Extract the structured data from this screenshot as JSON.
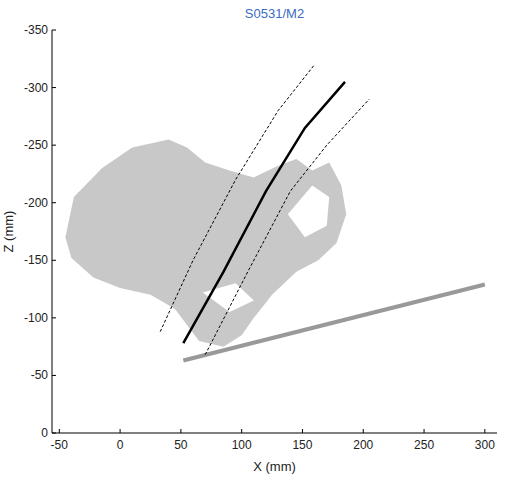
{
  "chart_data": {
    "type": "line",
    "title": "S0531/M2",
    "x_label": "X (mm)",
    "y_label": "Z (mm)",
    "xlim": [
      -56,
      310
    ],
    "ylim": [
      0,
      -350
    ],
    "xticks": [
      -50,
      0,
      50,
      100,
      150,
      200,
      250,
      300
    ],
    "yticks": [
      0,
      -50,
      -100,
      -150,
      -200,
      -250,
      -300,
      -350
    ],
    "grid": false,
    "series": [
      {
        "type": "area",
        "color": "#c8c8c8",
        "x": [
          -45,
          -38,
          -15,
          10,
          40,
          55,
          70,
          90,
          110,
          130,
          145,
          158,
          172,
          182,
          186,
          178,
          163,
          145,
          125,
          110,
          100,
          85,
          65,
          45,
          25,
          0,
          -22,
          -40,
          null,
          138,
          158,
          172,
          170,
          152,
          null,
          68,
          95,
          110,
          90
        ],
        "values": [
          -170,
          -205,
          -230,
          -248,
          -255,
          -248,
          -235,
          -228,
          -222,
          -232,
          -238,
          -228,
          -235,
          -215,
          -190,
          -165,
          -150,
          -140,
          -120,
          -100,
          -85,
          -75,
          -80,
          -108,
          -120,
          -126,
          -135,
          -152,
          null,
          -190,
          -215,
          -205,
          -180,
          -170,
          null,
          -122,
          -130,
          -115,
          -105
        ]
      },
      {
        "type": "line",
        "color": "#999999",
        "line_style": "solid",
        "x": [
          52,
          300
        ],
        "values": [
          -63,
          -129
        ]
      },
      {
        "type": "line",
        "color": "#000000",
        "line_style": "dashed",
        "x": [
          33,
          60,
          95,
          130,
          160
        ],
        "values": [
          -88,
          -150,
          -220,
          -280,
          -320
        ]
      },
      {
        "type": "line",
        "color": "#000000",
        "line_style": "solid",
        "x": [
          52,
          85,
          120,
          152,
          185
        ],
        "values": [
          -78,
          -140,
          -210,
          -265,
          -305
        ]
      },
      {
        "type": "line",
        "color": "#000000",
        "line_style": "dashed",
        "x": [
          70,
          105,
          140,
          170,
          205
        ],
        "values": [
          -68,
          -140,
          -210,
          -250,
          -290
        ]
      }
    ]
  }
}
